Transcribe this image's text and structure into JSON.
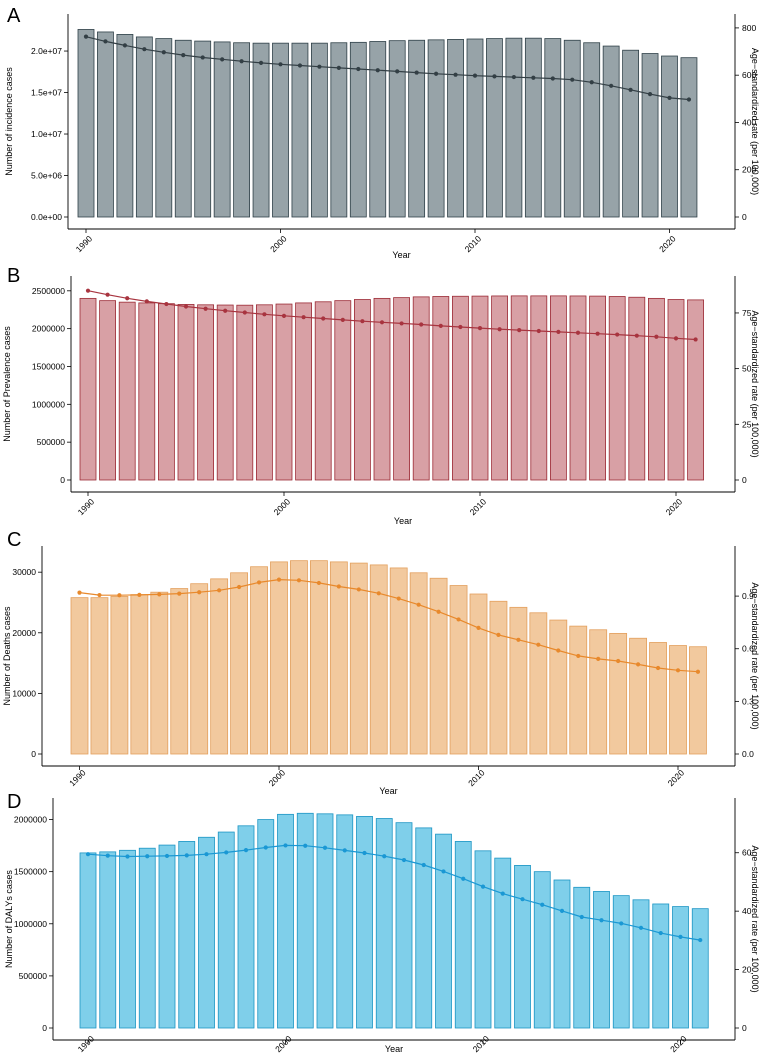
{
  "years": [
    1990,
    1991,
    1992,
    1993,
    1994,
    1995,
    1996,
    1997,
    1998,
    1999,
    2000,
    2001,
    2002,
    2003,
    2004,
    2005,
    2006,
    2007,
    2008,
    2009,
    2010,
    2011,
    2012,
    2013,
    2014,
    2015,
    2016,
    2017,
    2018,
    2019,
    2020,
    2021
  ],
  "chart_data": [
    {
      "panel": "A",
      "type": "bar",
      "title": "",
      "xlabel": "Year",
      "ylabel": "Number of incidence cases",
      "y2label": "Age−standardized rate (per 100,000)",
      "xticks": [
        "1990",
        "2000",
        "2010",
        "2020"
      ],
      "yticks": [
        "0.0e+00",
        "5.0e+06",
        "1.0e+07",
        "1.5e+07",
        "2.0e+07"
      ],
      "y2ticks": [
        "0",
        "200",
        "400",
        "600",
        "800"
      ],
      "ylim": [
        0,
        23500000
      ],
      "y2lim": [
        0,
        825
      ],
      "bar_color": "#97a3a8",
      "bar_stroke": "#2f4048",
      "line_color": "#333f45",
      "series": [
        {
          "name": "Number of incidence cases",
          "axis": "left",
          "values": [
            22600000,
            22300000,
            22000000,
            21700000,
            21500000,
            21300000,
            21200000,
            21100000,
            21000000,
            20950000,
            20950000,
            20950000,
            20950000,
            21000000,
            21050000,
            21150000,
            21250000,
            21300000,
            21350000,
            21400000,
            21450000,
            21500000,
            21550000,
            21550000,
            21500000,
            21300000,
            21000000,
            20600000,
            20100000,
            19700000,
            19400000,
            19200000
          ]
        },
        {
          "name": "Age-standardized incidence rate",
          "axis": "right",
          "values": [
            763,
            743,
            726,
            710,
            697,
            685,
            675,
            667,
            659,
            652,
            646,
            641,
            636,
            631,
            626,
            621,
            616,
            611,
            606,
            602,
            598,
            595,
            592,
            589,
            586,
            581,
            570,
            555,
            538,
            520,
            504,
            497
          ]
        }
      ]
    },
    {
      "panel": "B",
      "type": "bar",
      "title": "",
      "xlabel": "Year",
      "ylabel": "Number of Prevalence cases",
      "y2label": "Age−standardized rate (per 100,000)",
      "xticks": [
        "1990",
        "2000",
        "2010",
        "2020"
      ],
      "yticks": [
        "0",
        "500000",
        "1000000",
        "1500000",
        "2000000",
        "2500000"
      ],
      "y2ticks": [
        "0",
        "25",
        "50",
        "75"
      ],
      "ylim": [
        0,
        2590000
      ],
      "y2lim": [
        0,
        88
      ],
      "bar_color": "#d8a0a5",
      "bar_stroke": "#9c2b36",
      "line_color": "#a8343f",
      "series": [
        {
          "name": "Number of Prevalence cases",
          "axis": "left",
          "values": [
            2400000,
            2370000,
            2350000,
            2340000,
            2330000,
            2320000,
            2315000,
            2312000,
            2310000,
            2315000,
            2325000,
            2340000,
            2355000,
            2370000,
            2385000,
            2400000,
            2410000,
            2420000,
            2425000,
            2428000,
            2430000,
            2432000,
            2433000,
            2433000,
            2433000,
            2432000,
            2430000,
            2425000,
            2415000,
            2400000,
            2385000,
            2380000
          ]
        },
        {
          "name": "Age-standardized prevalence rate",
          "axis": "right",
          "values": [
            85.0,
            83.2,
            81.6,
            80.2,
            79.0,
            77.9,
            76.9,
            76.0,
            75.2,
            74.4,
            73.7,
            73.1,
            72.5,
            71.9,
            71.3,
            70.8,
            70.3,
            69.8,
            69.2,
            68.7,
            68.2,
            67.7,
            67.3,
            66.9,
            66.5,
            66.1,
            65.7,
            65.3,
            64.8,
            64.3,
            63.6,
            63.1
          ]
        }
      ]
    },
    {
      "panel": "C",
      "type": "bar",
      "title": "",
      "xlabel": "Year",
      "ylabel": "Number of Deaths cases",
      "y2label": "Age−standardized rate (per 100,000)",
      "xticks": [
        "1990",
        "2000",
        "2010",
        "2020"
      ],
      "yticks": [
        "0",
        "10000",
        "20000",
        "30000"
      ],
      "y2ticks": [
        "0.0",
        "0.3",
        "0.6",
        "0.9"
      ],
      "ylim": [
        0,
        33000
      ],
      "y2lim": [
        0,
        1.14
      ],
      "bar_color": "#f2c99e",
      "bar_stroke": "#e3a05e",
      "line_color": "#e8892c",
      "series": [
        {
          "name": "Number of Deaths cases",
          "axis": "left",
          "values": [
            25800,
            25800,
            26000,
            26300,
            26700,
            27300,
            28100,
            28900,
            29900,
            30900,
            31700,
            31900,
            31900,
            31700,
            31500,
            31200,
            30700,
            29900,
            29000,
            27800,
            26400,
            25200,
            24200,
            23300,
            22100,
            21100,
            20500,
            19900,
            19100,
            18400,
            17900,
            17700
          ]
        },
        {
          "name": "Age-standardized death rate",
          "axis": "right",
          "values": [
            0.92,
            0.906,
            0.905,
            0.907,
            0.91,
            0.914,
            0.922,
            0.933,
            0.952,
            0.978,
            0.994,
            0.99,
            0.975,
            0.955,
            0.938,
            0.916,
            0.886,
            0.851,
            0.811,
            0.767,
            0.719,
            0.679,
            0.651,
            0.623,
            0.59,
            0.559,
            0.542,
            0.53,
            0.511,
            0.49,
            0.477,
            0.469
          ]
        }
      ]
    },
    {
      "panel": "D",
      "type": "bar",
      "title": "",
      "xlabel": "Year",
      "ylabel": "Number of DALYs cases",
      "y2label": "Age−standardized rate (per 100,000)",
      "xticks": [
        "1990",
        "2000",
        "2010",
        "2020"
      ],
      "yticks": [
        "0",
        "500000",
        "1000000",
        "1500000",
        "2000000"
      ],
      "y2ticks": [
        "0",
        "20",
        "40",
        "60"
      ],
      "ylim": [
        0,
        2130000
      ],
      "y2lim": [
        0,
        76
      ],
      "bar_color": "#7fcfea",
      "bar_stroke": "#1c95c4",
      "line_color": "#1a98d4",
      "series": [
        {
          "name": "Number of DALYs cases",
          "axis": "left",
          "values": [
            1680000,
            1690000,
            1705000,
            1725000,
            1755000,
            1790000,
            1830000,
            1880000,
            1940000,
            2000000,
            2050000,
            2060000,
            2055000,
            2045000,
            2030000,
            2010000,
            1970000,
            1920000,
            1860000,
            1790000,
            1700000,
            1630000,
            1560000,
            1500000,
            1420000,
            1350000,
            1310000,
            1270000,
            1230000,
            1190000,
            1165000,
            1145000
          ]
        },
        {
          "name": "Age-standardized DALY rate",
          "axis": "right",
          "values": [
            59.5,
            59.0,
            58.7,
            58.8,
            58.9,
            59.1,
            59.5,
            60.1,
            60.9,
            61.8,
            62.5,
            62.4,
            61.7,
            60.8,
            59.9,
            58.8,
            57.5,
            55.8,
            53.6,
            51.1,
            48.4,
            46.0,
            44.1,
            42.2,
            40.1,
            38.0,
            36.9,
            35.8,
            34.3,
            32.5,
            31.2,
            30.1
          ]
        }
      ]
    }
  ]
}
